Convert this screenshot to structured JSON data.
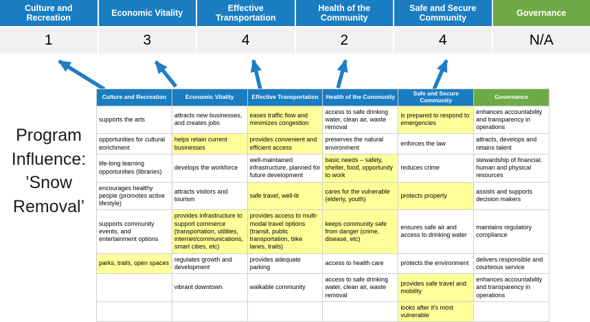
{
  "title": {
    "text": "Program Influence: ’Snow Removal’"
  },
  "colors": {
    "header_blue": "#1A7DC2",
    "header_green": "#6EAB46",
    "highlight_yellow": "#FFFF99",
    "score_background": "#F1F1F1",
    "arrow_blue": "#1F7EC4"
  },
  "summary": {
    "columns": [
      {
        "label": "Culture and Recreation",
        "score": "1",
        "color": "blue"
      },
      {
        "label": "Economic Vitality",
        "score": "3",
        "color": "blue"
      },
      {
        "label": "Effective Transportation",
        "score": "4",
        "color": "blue"
      },
      {
        "label": "Health of the Community",
        "score": "2",
        "color": "blue"
      },
      {
        "label": "Safe and Secure Community",
        "score": "4",
        "color": "blue"
      },
      {
        "label": "Governance",
        "score": "N/A",
        "color": "green"
      }
    ]
  },
  "matrix": {
    "headers": [
      {
        "label": "Culture and Recreation",
        "color": "blue"
      },
      {
        "label": "Economic Vitality",
        "color": "blue"
      },
      {
        "label": "Effective Transportation",
        "color": "blue"
      },
      {
        "label": "Health of the Community",
        "color": "blue"
      },
      {
        "label": "Safe and Secure Community",
        "color": "blue"
      },
      {
        "label": "Governance",
        "color": "green"
      }
    ],
    "rows": [
      [
        {
          "text": "supports the arts",
          "highlight": false
        },
        {
          "text": "attracts new businesses, and creates jobs",
          "highlight": false
        },
        {
          "text": "eases traffic flow and minimizes congestion",
          "highlight": true
        },
        {
          "text": "access to safe drinking water, clean air, waste removal",
          "highlight": false
        },
        {
          "text": "is prepared to respond to emergencies",
          "highlight": true
        },
        {
          "text": "enhances accountability and transparency in operations",
          "highlight": false
        }
      ],
      [
        {
          "text": "opportunities for cultural enrichment",
          "highlight": false
        },
        {
          "text": "helps retain current businesses",
          "highlight": true
        },
        {
          "text": "provides convenient and efficient access",
          "highlight": true
        },
        {
          "text": "preserves the natural environment",
          "highlight": false
        },
        {
          "text": "enforces the law",
          "highlight": false
        },
        {
          "text": "attracts, develops and retains talent",
          "highlight": false
        }
      ],
      [
        {
          "text": "life-long learning opportunities (libraries)",
          "highlight": false
        },
        {
          "text": "develops the workforce",
          "highlight": false
        },
        {
          "text": "well-maintained infrastructure, planned for future development",
          "highlight": false
        },
        {
          "text": "basic needs – safety, shelter, food, opportunity to work",
          "highlight": true
        },
        {
          "text": "reduces crime",
          "highlight": false
        },
        {
          "text": "stewardship of financial, human and physical resources",
          "highlight": false
        }
      ],
      [
        {
          "text": "encourages healthy people (promotes active lifestyle)",
          "highlight": false
        },
        {
          "text": "attracts visitors and tourism",
          "highlight": false
        },
        {
          "text": "safe travel, well-lit",
          "highlight": true
        },
        {
          "text": "cares for the vulnerable (elderly, youth)",
          "highlight": true
        },
        {
          "text": "protects property",
          "highlight": true
        },
        {
          "text": "assists and supports decision makers",
          "highlight": false
        }
      ],
      [
        {
          "text": "supports community events, and entertainment options",
          "highlight": false
        },
        {
          "text": "provides infrastructure to support commerce (transportation, utilities, internet/communications, smart cities, etc)",
          "highlight": true
        },
        {
          "text": "provides access to multi-modal travel options (transit, public transportation, bike lanes, trails)",
          "highlight": true
        },
        {
          "text": "keeps community safe from danger (crime, disease, etc)",
          "highlight": true
        },
        {
          "text": "ensures safe air and access to drinking water",
          "highlight": false
        },
        {
          "text": "maintains regulatory compliance",
          "highlight": false
        }
      ],
      [
        {
          "text": "parks, trails, open spaces",
          "highlight": true
        },
        {
          "text": "regulates growth and development",
          "highlight": false
        },
        {
          "text": "provides adequate parking",
          "highlight": false
        },
        {
          "text": "access to health care",
          "highlight": false
        },
        {
          "text": "protects the environment",
          "highlight": false
        },
        {
          "text": "delivers responsible and courteous service",
          "highlight": false
        }
      ],
      [
        {
          "text": "",
          "highlight": false
        },
        {
          "text": "vibrant downtown",
          "highlight": false
        },
        {
          "text": "walkable community",
          "highlight": false
        },
        {
          "text": "access to safe drinking water, clean air, waste removal",
          "highlight": false
        },
        {
          "text": "provides safe travel and mobility",
          "highlight": true
        },
        {
          "text": "enhances accountability and transparency in operations",
          "highlight": false
        }
      ],
      [
        {
          "text": "",
          "highlight": false
        },
        {
          "text": "",
          "highlight": false
        },
        {
          "text": "",
          "highlight": false
        },
        {
          "text": "",
          "highlight": false
        },
        {
          "text": "looks after it's most vulnerable",
          "highlight": true
        },
        {
          "text": "",
          "highlight": false
        }
      ]
    ]
  }
}
